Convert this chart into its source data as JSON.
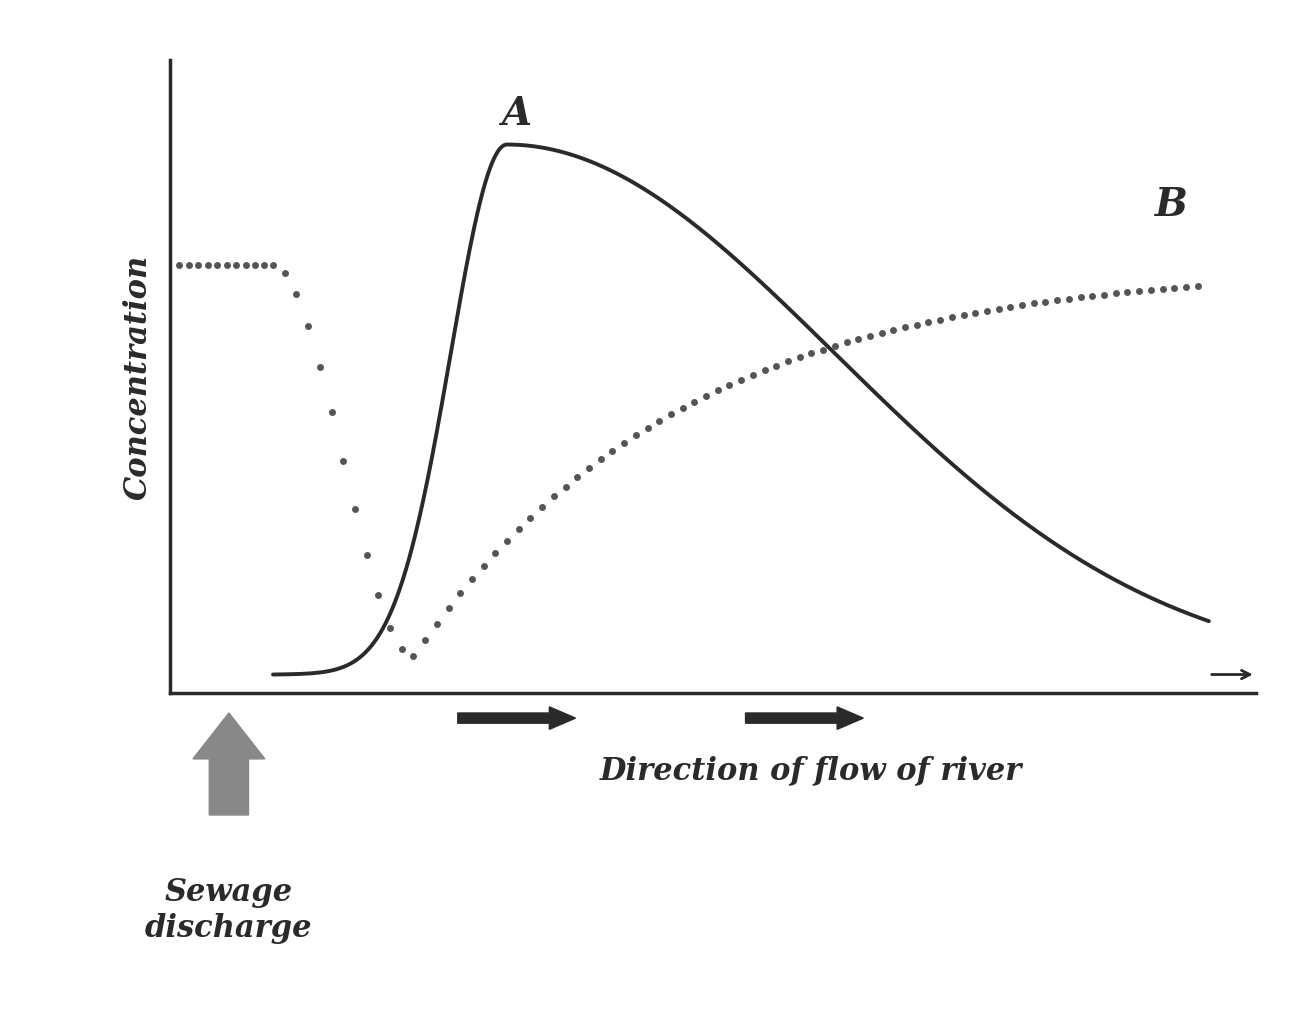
{
  "title": "",
  "ylabel": "Concentration",
  "xlabel": "Direction of flow of river",
  "sewage_label": "Sewage\ndischarge",
  "peak_A_label": "A",
  "peak_B_label": "B",
  "background_color": "#ffffff",
  "plot_bg_color": "#ffffff",
  "solid_curve_color": "#2a2a2a",
  "dotted_curve_color": "#555555",
  "axis_color": "#2a2a2a",
  "text_color": "#2a2a2a",
  "sewage_arrow_color": "#888888",
  "flow_arrow_color": "#2a2a2a",
  "figsize": [
    13.08,
    10.2
  ],
  "dpi": 100
}
